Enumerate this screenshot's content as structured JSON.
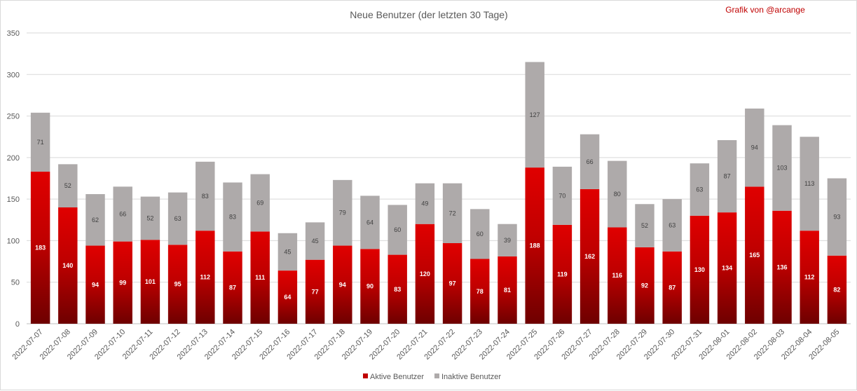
{
  "chart_data": {
    "type": "bar",
    "stacked": true,
    "title": "Neue Benutzer (der letzten 30 Tage)",
    "credit": "Grafik von @arcange",
    "categories": [
      "2022-07-07",
      "2022-07-08",
      "2022-07-09",
      "2022-07-10",
      "2022-07-11",
      "2022-07-12",
      "2022-07-13",
      "2022-07-14",
      "2022-07-15",
      "2022-07-16",
      "2022-07-17",
      "2022-07-18",
      "2022-07-19",
      "2022-07-20",
      "2022-07-21",
      "2022-07-22",
      "2022-07-23",
      "2022-07-24",
      "2022-07-25",
      "2022-07-26",
      "2022-07-27",
      "2022-07-28",
      "2022-07-29",
      "2022-07-30",
      "2022-07-31",
      "2022-08-01",
      "2022-08-02",
      "2022-08-03",
      "2022-08-04",
      "2022-08-05"
    ],
    "series": [
      {
        "name": "Aktive Benutzer",
        "color": "#c00000",
        "values": [
          183,
          140,
          94,
          99,
          101,
          95,
          112,
          87,
          111,
          64,
          77,
          94,
          90,
          83,
          120,
          97,
          78,
          81,
          188,
          119,
          162,
          116,
          92,
          87,
          130,
          134,
          165,
          136,
          112,
          82
        ]
      },
      {
        "name": "Inaktive Benutzer",
        "color": "#aeaaaa",
        "values": [
          71,
          52,
          62,
          66,
          52,
          63,
          83,
          83,
          69,
          45,
          45,
          79,
          64,
          60,
          49,
          72,
          60,
          39,
          127,
          70,
          66,
          80,
          52,
          63,
          63,
          87,
          94,
          103,
          113,
          93
        ]
      }
    ],
    "ylim": [
      0,
      350
    ],
    "yticks": [
      0,
      50,
      100,
      150,
      200,
      250,
      300,
      350
    ],
    "grid": true,
    "legend_position": "bottom"
  }
}
